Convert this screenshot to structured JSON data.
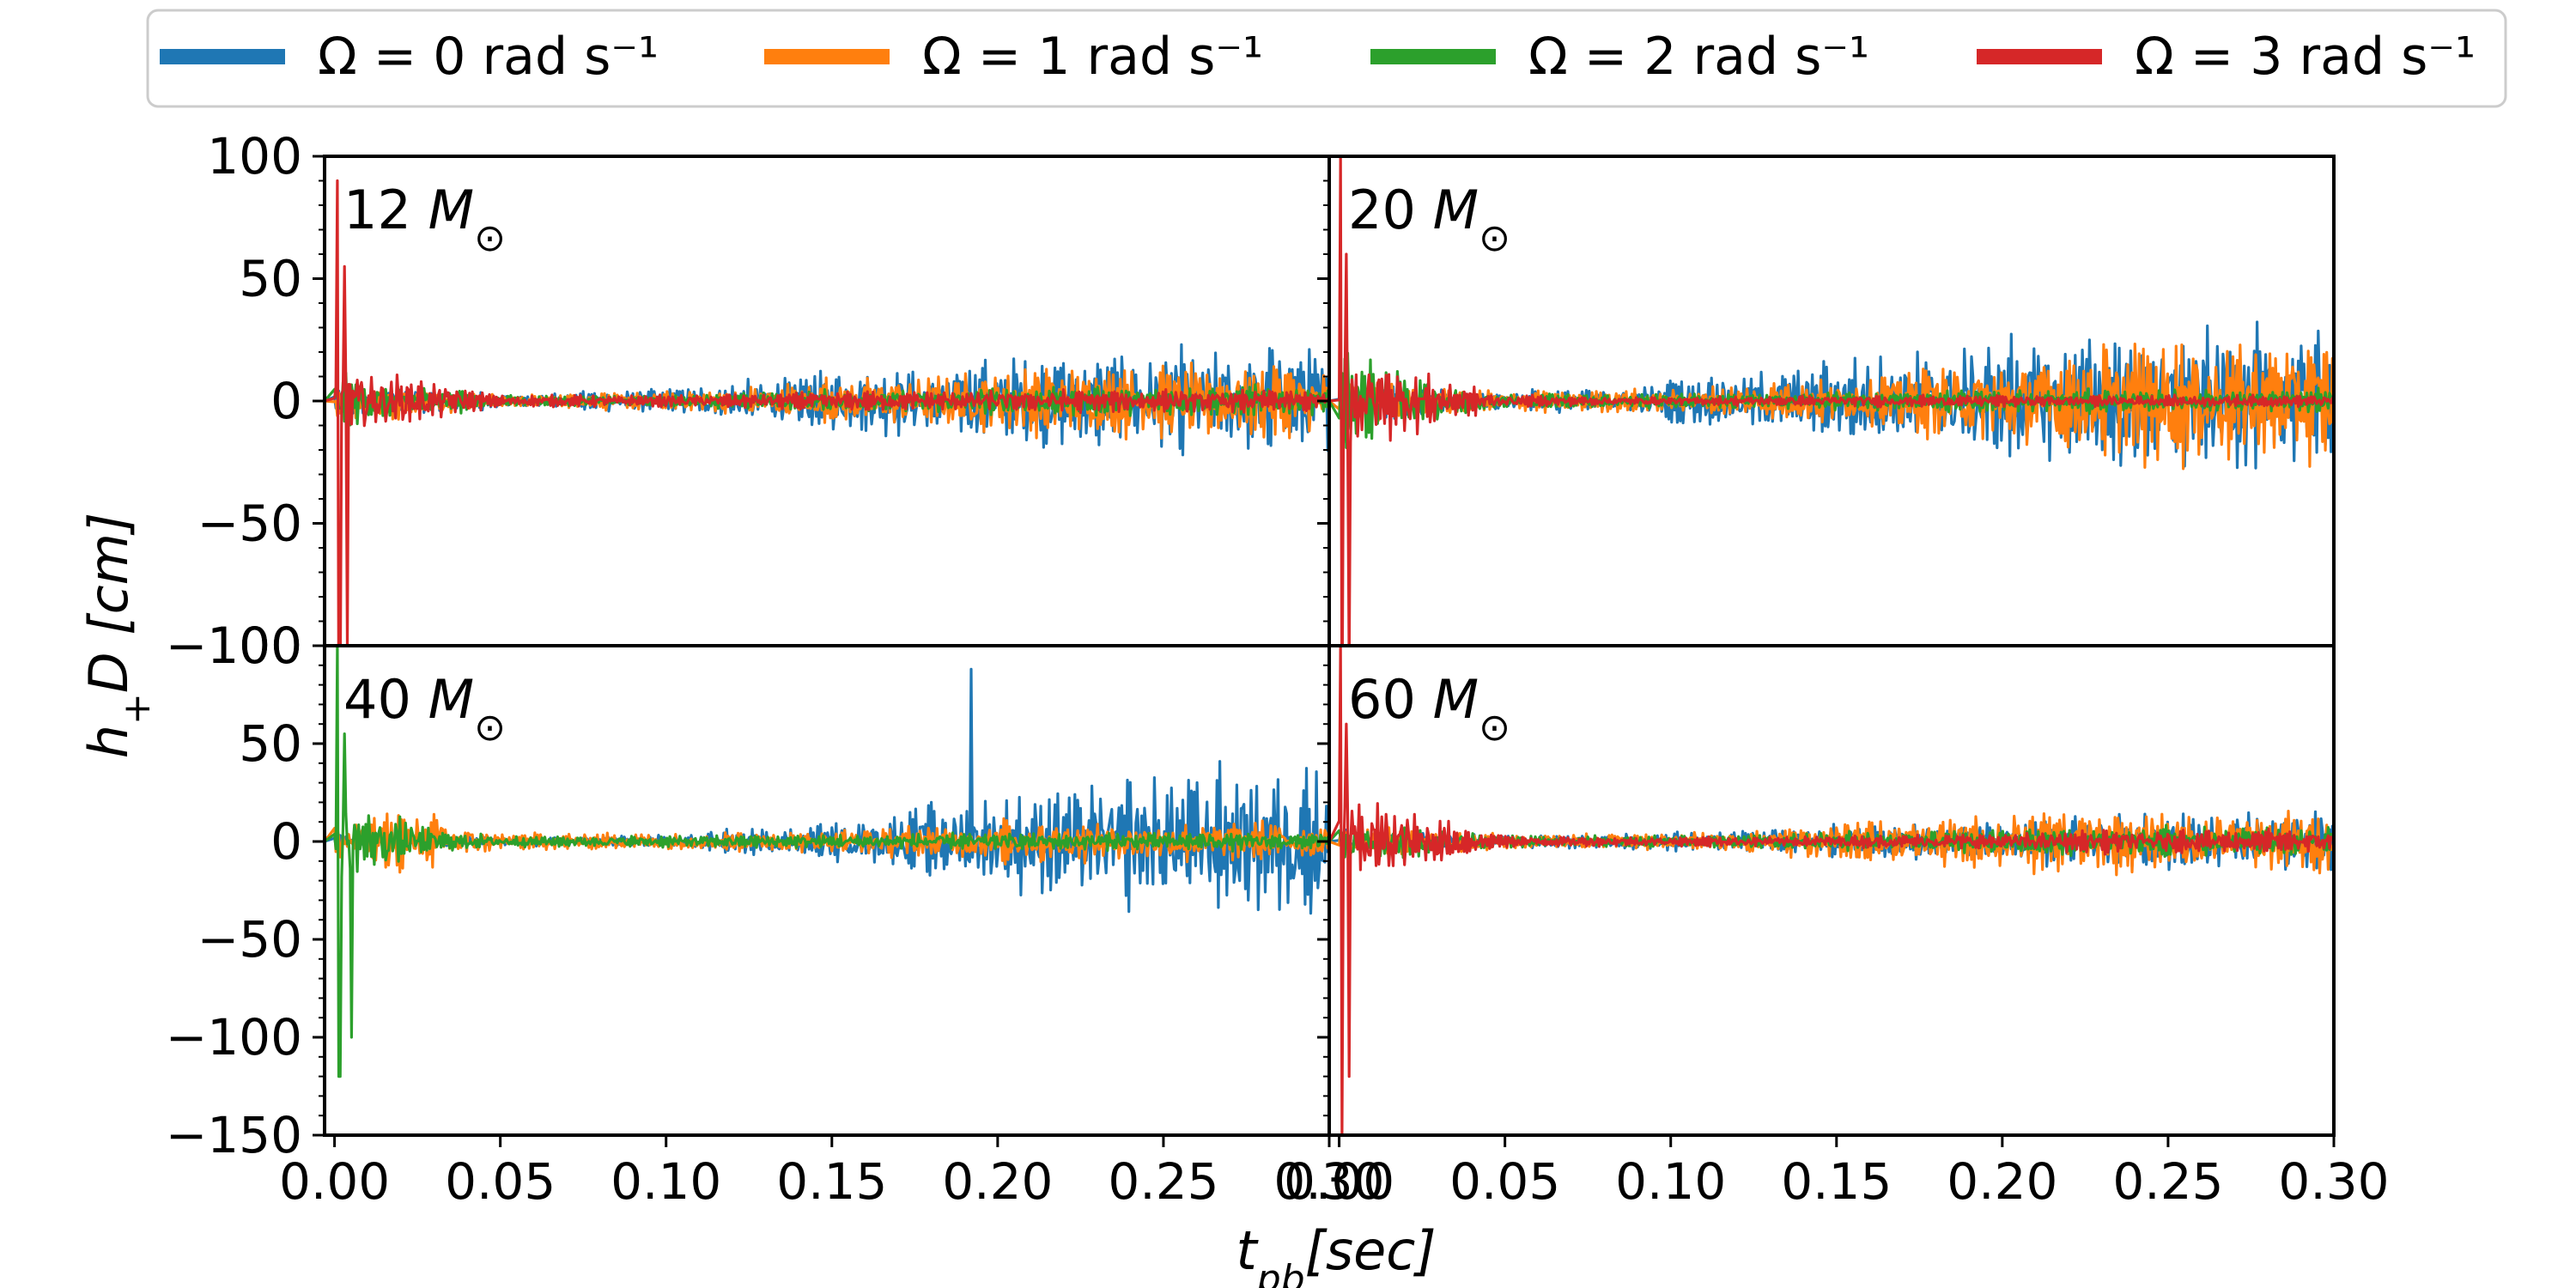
{
  "chart_data": {
    "type": "line",
    "ylabel": "h₊D [cm]",
    "ylabel_parts": {
      "main": "h",
      "sub": "+",
      "rest": "D [cm]"
    },
    "xlabel": "tpb[sec]",
    "xlabel_parts": {
      "main": "t",
      "sub": "pb",
      "rest": "[sec]"
    },
    "legend": {
      "placement": "top",
      "entries": [
        {
          "label": "Ω = 0 rad s⁻¹",
          "color": "#1f77b4"
        },
        {
          "label": "Ω = 1 rad s⁻¹",
          "color": "#ff7f0e"
        },
        {
          "label": "Ω = 2 rad s⁻¹",
          "color": "#2ca02c"
        },
        {
          "label": "Ω = 3 rad s⁻¹",
          "color": "#d62728"
        }
      ]
    },
    "xlim": [
      -0.003,
      0.3
    ],
    "x_ticks": [
      "0.00",
      "0.05",
      "0.10",
      "0.15",
      "0.20",
      "0.25",
      "0.30"
    ],
    "x_tick_values": [
      0.0,
      0.05,
      0.1,
      0.15,
      0.2,
      0.25,
      0.3
    ],
    "rows": [
      {
        "ylim": [
          -100,
          100
        ],
        "y_ticks": [
          -100,
          -50,
          0,
          50,
          100
        ],
        "y_tick_labels": [
          "−100",
          "−50",
          "0",
          "50",
          "100"
        ]
      },
      {
        "ylim": [
          -150,
          100
        ],
        "y_ticks": [
          -150,
          -100,
          -50,
          0,
          50,
          100
        ],
        "y_tick_labels": [
          "−150",
          "−100",
          "−50",
          "0",
          "50",
          "100"
        ]
      }
    ],
    "panels": [
      {
        "label": "12 M⊙",
        "mass": "12",
        "row": 0,
        "col": 0,
        "series_envelope": [
          {
            "name": "Ω = 0 rad s⁻¹",
            "amp": [
              [
                0,
                10
              ],
              [
                0.05,
                4
              ],
              [
                0.1,
                7
              ],
              [
                0.15,
                18
              ],
              [
                0.2,
                22
              ],
              [
                0.25,
                28
              ],
              [
                0.3,
                30
              ]
            ],
            "spike": []
          },
          {
            "name": "Ω = 1 rad s⁻¹",
            "amp": [
              [
                0,
                12
              ],
              [
                0.05,
                4
              ],
              [
                0.1,
                5
              ],
              [
                0.15,
                12
              ],
              [
                0.2,
                18
              ],
              [
                0.25,
                20
              ],
              [
                0.3,
                20
              ]
            ],
            "spike": []
          },
          {
            "name": "Ω = 2 rad s⁻¹",
            "amp": [
              [
                0,
                15
              ],
              [
                0.05,
                3
              ],
              [
                0.1,
                3
              ],
              [
                0.15,
                6
              ],
              [
                0.2,
                8
              ],
              [
                0.25,
                8
              ],
              [
                0.3,
                8
              ]
            ],
            "spike": []
          },
          {
            "name": "Ω = 3 rad s⁻¹",
            "amp": [
              [
                0,
                22
              ],
              [
                0.05,
                3
              ],
              [
                0.1,
                3
              ],
              [
                0.15,
                5
              ],
              [
                0.2,
                6
              ],
              [
                0.25,
                6
              ],
              [
                0.3,
                6
              ]
            ],
            "spike": [
              [
                0.001,
                90
              ],
              [
                0.0015,
                -120
              ],
              [
                0.003,
                55
              ],
              [
                0.004,
                -100
              ]
            ]
          }
        ]
      },
      {
        "label": "20 M⊙",
        "mass": "20",
        "row": 0,
        "col": 1,
        "series_envelope": [
          {
            "name": "Ω = 0 rad s⁻¹",
            "amp": [
              [
                0,
                10
              ],
              [
                0.05,
                5
              ],
              [
                0.1,
                10
              ],
              [
                0.15,
                22
              ],
              [
                0.2,
                35
              ],
              [
                0.25,
                40
              ],
              [
                0.3,
                35
              ]
            ],
            "spike": []
          },
          {
            "name": "Ω = 1 rad s⁻¹",
            "amp": [
              [
                0,
                12
              ],
              [
                0.05,
                6
              ],
              [
                0.1,
                6
              ],
              [
                0.15,
                12
              ],
              [
                0.2,
                25
              ],
              [
                0.25,
                35
              ],
              [
                0.3,
                32
              ]
            ],
            "spike": []
          },
          {
            "name": "Ω = 2 rad s⁻¹",
            "amp": [
              [
                0,
                25
              ],
              [
                0.05,
                4
              ],
              [
                0.1,
                4
              ],
              [
                0.15,
                5
              ],
              [
                0.2,
                6
              ],
              [
                0.25,
                6
              ],
              [
                0.3,
                6
              ]
            ],
            "spike": []
          },
          {
            "name": "Ω = 3 rad s⁻¹",
            "amp": [
              [
                0,
                30
              ],
              [
                0.05,
                3
              ],
              [
                0.1,
                2
              ],
              [
                0.15,
                3
              ],
              [
                0.2,
                3
              ],
              [
                0.25,
                3
              ],
              [
                0.3,
                3
              ]
            ],
            "spike": [
              [
                0.0005,
                100
              ],
              [
                0.001,
                -140
              ],
              [
                0.002,
                60
              ],
              [
                0.003,
                -110
              ]
            ]
          }
        ]
      },
      {
        "label": "40 M⊙",
        "mass": "40",
        "row": 1,
        "col": 0,
        "series_envelope": [
          {
            "name": "Ω = 0 rad s⁻¹",
            "amp": [
              [
                0,
                5
              ],
              [
                0.05,
                3
              ],
              [
                0.1,
                5
              ],
              [
                0.15,
                12
              ],
              [
                0.2,
                30
              ],
              [
                0.25,
                45
              ],
              [
                0.3,
                55
              ]
            ],
            "spike": [
              [
                0.192,
                88
              ]
            ]
          },
          {
            "name": "Ω = 1 rad s⁻¹",
            "amp": [
              [
                0,
                15
              ],
              [
                0.03,
                20
              ],
              [
                0.05,
                6
              ],
              [
                0.1,
                6
              ],
              [
                0.15,
                8
              ],
              [
                0.2,
                14
              ],
              [
                0.25,
                15
              ],
              [
                0.3,
                12
              ]
            ],
            "spike": []
          },
          {
            "name": "Ω = 2 rad s⁻¹",
            "amp": [
              [
                0,
                30
              ],
              [
                0.03,
                8
              ],
              [
                0.05,
                4
              ],
              [
                0.1,
                4
              ],
              [
                0.15,
                5
              ],
              [
                0.2,
                6
              ],
              [
                0.25,
                6
              ],
              [
                0.3,
                6
              ]
            ],
            "spike": [
              [
                0.001,
                100
              ],
              [
                0.0015,
                -120
              ],
              [
                0.003,
                55
              ],
              [
                0.005,
                -100
              ]
            ]
          },
          {
            "name": "Ω = 3 rad s⁻¹",
            "amp": [],
            "spike": []
          }
        ]
      },
      {
        "label": "60 M⊙",
        "mass": "60",
        "row": 1,
        "col": 1,
        "series_envelope": [
          {
            "name": "Ω = 0 rad s⁻¹",
            "amp": [
              [
                0,
                8
              ],
              [
                0.05,
                4
              ],
              [
                0.1,
                6
              ],
              [
                0.15,
                10
              ],
              [
                0.2,
                15
              ],
              [
                0.25,
                18
              ],
              [
                0.3,
                22
              ]
            ],
            "spike": []
          },
          {
            "name": "Ω = 1 rad s⁻¹",
            "amp": [
              [
                0,
                10
              ],
              [
                0.05,
                5
              ],
              [
                0.1,
                6
              ],
              [
                0.15,
                12
              ],
              [
                0.2,
                20
              ],
              [
                0.25,
                22
              ],
              [
                0.3,
                20
              ]
            ],
            "spike": []
          },
          {
            "name": "Ω = 2 rad s⁻¹",
            "amp": [
              [
                0,
                15
              ],
              [
                0.05,
                4
              ],
              [
                0.1,
                4
              ],
              [
                0.15,
                6
              ],
              [
                0.2,
                8
              ],
              [
                0.25,
                10
              ],
              [
                0.3,
                10
              ]
            ],
            "spike": []
          },
          {
            "name": "Ω = 3 rad s⁻¹",
            "amp": [
              [
                0,
                35
              ],
              [
                0.05,
                4
              ],
              [
                0.1,
                3
              ],
              [
                0.15,
                4
              ],
              [
                0.2,
                6
              ],
              [
                0.25,
                8
              ],
              [
                0.3,
                8
              ]
            ],
            "spike": [
              [
                0.0005,
                100
              ],
              [
                0.001,
                -150
              ],
              [
                0.002,
                60
              ],
              [
                0.003,
                -120
              ]
            ]
          }
        ]
      }
    ]
  }
}
